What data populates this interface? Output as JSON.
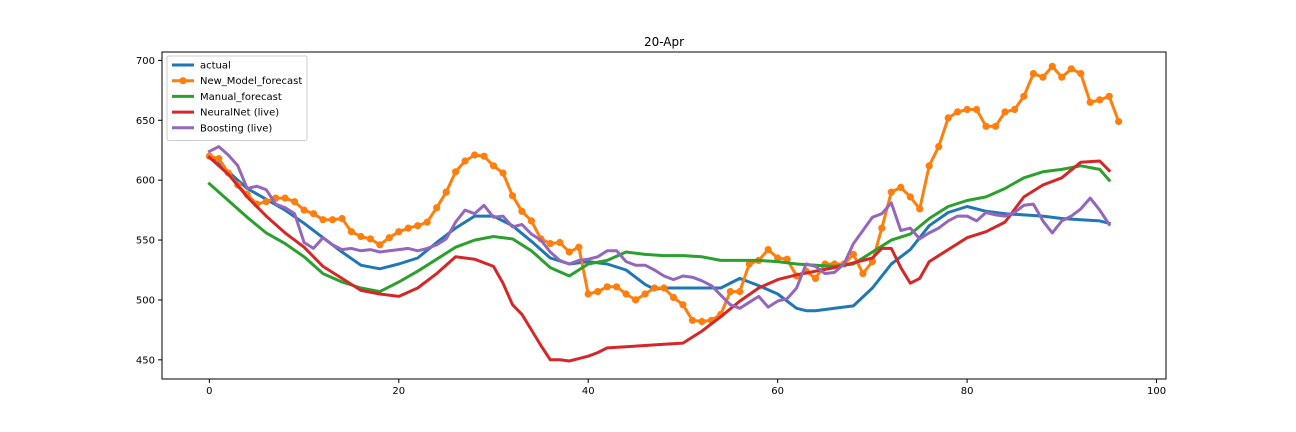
{
  "chart_data": {
    "type": "line",
    "title": "20-Apr",
    "xlabel": "",
    "ylabel": "",
    "xlim": [
      -5,
      101
    ],
    "ylim": [
      434,
      707
    ],
    "xticks": [
      0,
      20,
      40,
      60,
      80,
      100
    ],
    "yticks": [
      450,
      500,
      550,
      600,
      650,
      700
    ],
    "legend_position": "top-left",
    "series": [
      {
        "name": "actual",
        "color": "#1f77b4",
        "marker": false,
        "x": [
          0,
          2,
          4,
          6,
          8,
          10,
          12,
          14,
          16,
          18,
          20,
          22,
          24,
          26,
          28,
          30,
          32,
          34,
          36,
          38,
          40,
          42,
          44,
          46,
          47,
          48,
          50,
          52,
          54,
          56,
          58,
          60,
          62,
          63,
          64,
          66,
          68,
          70,
          72,
          74,
          76,
          78,
          80,
          82,
          84,
          86,
          88,
          90,
          92,
          94,
          95
        ],
        "y": [
          620,
          607,
          593,
          584,
          575,
          564,
          552,
          540,
          529,
          526,
          530,
          535,
          548,
          560,
          570,
          570,
          562,
          549,
          535,
          530,
          532,
          530,
          525,
          513,
          509,
          510,
          510,
          510,
          510,
          518,
          512,
          505,
          493,
          491,
          491,
          493,
          495,
          510,
          530,
          542,
          562,
          573,
          578,
          574,
          572,
          571,
          570,
          568,
          567,
          566,
          564
        ]
      },
      {
        "name": "New_Model_forecast",
        "color": "#ff7f0e",
        "marker": true,
        "x": [
          0,
          1,
          2,
          3,
          4,
          5,
          6,
          7,
          8,
          9,
          10,
          11,
          12,
          13,
          14,
          15,
          16,
          17,
          18,
          19,
          20,
          21,
          22,
          23,
          24,
          25,
          26,
          27,
          28,
          29,
          30,
          31,
          32,
          33,
          34,
          35,
          36,
          37,
          38,
          39,
          40,
          41,
          42,
          43,
          44,
          45,
          46,
          47,
          48,
          49,
          50,
          51,
          52,
          53,
          54,
          55,
          56,
          57,
          58,
          59,
          60,
          61,
          62,
          63,
          64,
          65,
          66,
          67,
          68,
          69,
          70,
          71,
          72,
          73,
          74,
          75,
          76,
          77,
          78,
          79,
          80,
          81,
          82,
          83,
          84,
          85,
          86,
          87,
          88,
          89,
          90,
          91,
          92,
          93,
          94,
          95,
          96
        ],
        "y": [
          620,
          618,
          606,
          596,
          588,
          580,
          582,
          585,
          585,
          582,
          575,
          572,
          567,
          567,
          568,
          557,
          553,
          551,
          546,
          552,
          557,
          560,
          562,
          565,
          577,
          590,
          607,
          616,
          621,
          620,
          612,
          606,
          587,
          574,
          566,
          551,
          547,
          548,
          540,
          544,
          505,
          507,
          511,
          511,
          505,
          500,
          505,
          510,
          510,
          502,
          496,
          483,
          482,
          483,
          488,
          507,
          507,
          530,
          533,
          542,
          535,
          534,
          520,
          524,
          518,
          530,
          530,
          530,
          538,
          522,
          532,
          560,
          590,
          594,
          586,
          576,
          612,
          628,
          652,
          657,
          659,
          659,
          645,
          645,
          657,
          659,
          670,
          689,
          686,
          695,
          686,
          693,
          689,
          665,
          667,
          670,
          649
        ]
      },
      {
        "name": "Manual_forecast",
        "color": "#2ca02c",
        "marker": false,
        "x": [
          0,
          2,
          4,
          6,
          8,
          10,
          12,
          14,
          16,
          18,
          20,
          22,
          24,
          26,
          28,
          30,
          32,
          34,
          36,
          38,
          40,
          42,
          44,
          46,
          48,
          50,
          52,
          54,
          56,
          58,
          60,
          62,
          64,
          66,
          68,
          70,
          72,
          74,
          76,
          78,
          80,
          82,
          84,
          86,
          88,
          90,
          92,
          94,
          95
        ],
        "y": [
          597,
          583,
          569,
          556,
          547,
          536,
          522,
          515,
          510,
          507,
          515,
          524,
          534,
          544,
          550,
          553,
          551,
          541,
          527,
          520,
          530,
          533,
          540,
          538,
          537,
          537,
          536,
          533,
          533,
          533,
          532,
          530,
          529,
          528,
          530,
          540,
          550,
          555,
          568,
          578,
          583,
          586,
          593,
          602,
          607,
          609,
          612,
          609,
          600
        ]
      },
      {
        "name": "NeuralNet (live)",
        "color": "#d62728",
        "marker": false,
        "x": [
          0,
          2,
          4,
          6,
          8,
          10,
          12,
          14,
          16,
          18,
          20,
          22,
          24,
          26,
          28,
          30,
          31,
          32,
          33,
          34,
          35,
          36,
          37,
          38,
          39,
          40,
          41,
          42,
          44,
          46,
          48,
          50,
          52,
          54,
          56,
          58,
          60,
          62,
          64,
          66,
          68,
          70,
          71,
          72,
          73,
          74,
          75,
          76,
          78,
          80,
          82,
          84,
          86,
          88,
          90,
          92,
          94,
          95
        ],
        "y": [
          619,
          605,
          586,
          570,
          556,
          544,
          528,
          518,
          508,
          505,
          503,
          510,
          522,
          536,
          534,
          528,
          514,
          496,
          488,
          475,
          462,
          450,
          450,
          449,
          451,
          453,
          456,
          460,
          461,
          462,
          463,
          464,
          474,
          486,
          499,
          510,
          517,
          521,
          524,
          527,
          531,
          535,
          543,
          543,
          527,
          514,
          518,
          532,
          542,
          552,
          557,
          565,
          586,
          596,
          602,
          615,
          616,
          608
        ]
      },
      {
        "name": "Boosting (live)",
        "color": "#9467bd",
        "marker": false,
        "x": [
          0,
          1,
          2,
          3,
          4,
          5,
          6,
          7,
          8,
          9,
          10,
          11,
          12,
          13,
          14,
          15,
          16,
          17,
          18,
          19,
          20,
          21,
          22,
          23,
          24,
          25,
          26,
          27,
          28,
          29,
          30,
          31,
          32,
          33,
          34,
          35,
          36,
          37,
          38,
          39,
          40,
          41,
          42,
          43,
          44,
          45,
          46,
          47,
          48,
          49,
          50,
          51,
          52,
          53,
          54,
          55,
          56,
          57,
          58,
          59,
          60,
          61,
          62,
          63,
          64,
          65,
          66,
          67,
          68,
          69,
          70,
          71,
          72,
          73,
          74,
          75,
          76,
          77,
          78,
          79,
          80,
          81,
          82,
          83,
          84,
          85,
          86,
          87,
          88,
          89,
          90,
          91,
          92,
          93,
          94,
          95
        ],
        "y": [
          624,
          628,
          621,
          612,
          593,
          595,
          592,
          580,
          577,
          572,
          548,
          543,
          552,
          546,
          542,
          543,
          541,
          542,
          540,
          541,
          542,
          543,
          541,
          543,
          546,
          551,
          565,
          575,
          572,
          579,
          569,
          570,
          561,
          563,
          555,
          550,
          540,
          533,
          530,
          533,
          534,
          536,
          541,
          541,
          532,
          529,
          529,
          525,
          520,
          517,
          520,
          519,
          516,
          512,
          504,
          496,
          493,
          498,
          503,
          494,
          499,
          501,
          510,
          530,
          528,
          522,
          523,
          530,
          547,
          558,
          569,
          572,
          581,
          558,
          560,
          551,
          556,
          560,
          566,
          570,
          570,
          566,
          573,
          571,
          570,
          573,
          579,
          580,
          566,
          556,
          566,
          570,
          576,
          585,
          575,
          563
        ]
      }
    ]
  }
}
